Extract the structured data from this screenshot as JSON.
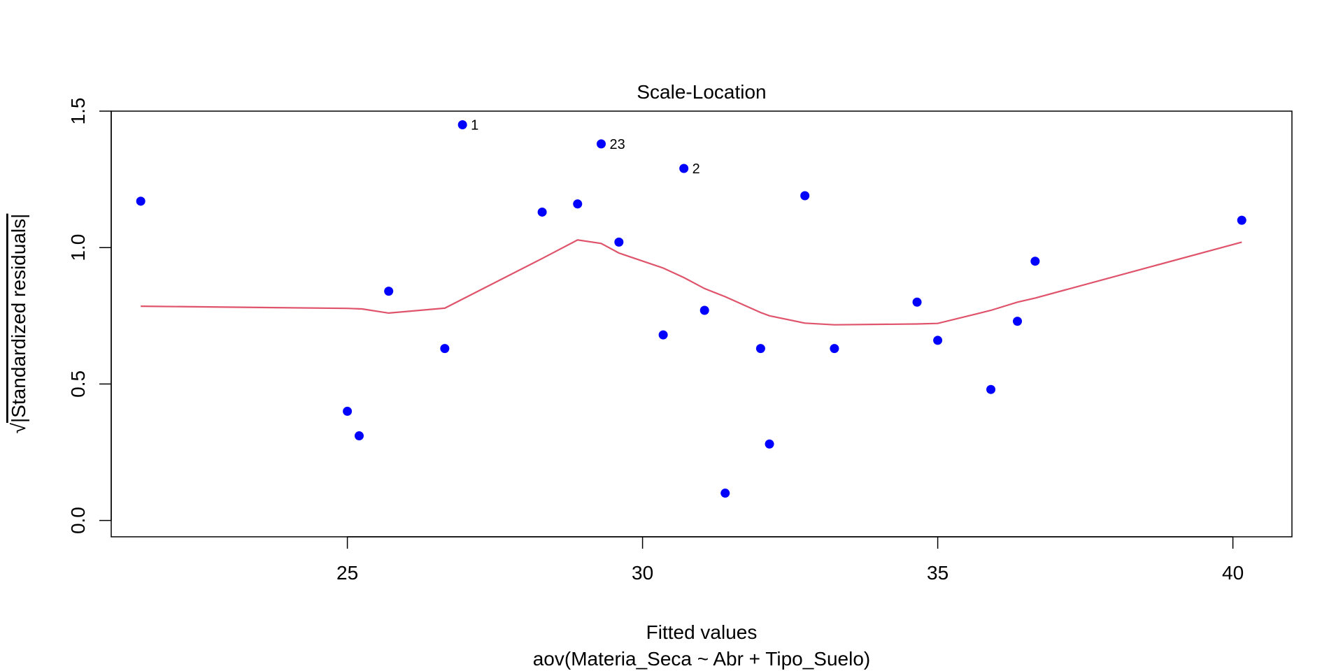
{
  "chart_data": {
    "type": "scatter",
    "title": "Scale-Location",
    "xlabel": "Fitted values",
    "xlabel_sub": "aov(Materia_Seca ~ Abr + Tipo_Suelo)",
    "ylabel_radical": "√",
    "ylabel": "|Standardized residuals|",
    "xlim": [
      21.0,
      41.0
    ],
    "ylim": [
      -0.06,
      1.5
    ],
    "x_ticks": [
      25,
      30,
      35,
      40
    ],
    "x_tick_labels": [
      "25",
      "30",
      "35",
      "40"
    ],
    "y_ticks": [
      0.0,
      0.5,
      1.0,
      1.5
    ],
    "y_tick_labels": [
      "0.0",
      "0.5",
      "1.0",
      "1.5"
    ],
    "grid": false,
    "colors": {
      "points": "#0000FF",
      "smooth": "#DF536B",
      "axis": "#000000"
    },
    "points": [
      {
        "x": 21.5,
        "y": 1.17,
        "label": ""
      },
      {
        "x": 25.0,
        "y": 0.4,
        "label": ""
      },
      {
        "x": 25.2,
        "y": 0.31,
        "label": ""
      },
      {
        "x": 25.7,
        "y": 0.84,
        "label": ""
      },
      {
        "x": 26.65,
        "y": 0.63,
        "label": ""
      },
      {
        "x": 26.95,
        "y": 1.45,
        "label": "1"
      },
      {
        "x": 28.3,
        "y": 1.13,
        "label": ""
      },
      {
        "x": 28.9,
        "y": 1.16,
        "label": ""
      },
      {
        "x": 29.3,
        "y": 1.38,
        "label": "23"
      },
      {
        "x": 29.6,
        "y": 1.02,
        "label": ""
      },
      {
        "x": 30.35,
        "y": 0.68,
        "label": ""
      },
      {
        "x": 30.7,
        "y": 1.29,
        "label": "2"
      },
      {
        "x": 31.05,
        "y": 0.77,
        "label": ""
      },
      {
        "x": 31.4,
        "y": 0.1,
        "label": ""
      },
      {
        "x": 32.0,
        "y": 0.63,
        "label": ""
      },
      {
        "x": 32.15,
        "y": 0.28,
        "label": ""
      },
      {
        "x": 32.75,
        "y": 1.19,
        "label": ""
      },
      {
        "x": 33.25,
        "y": 0.63,
        "label": ""
      },
      {
        "x": 34.65,
        "y": 0.8,
        "label": ""
      },
      {
        "x": 35.0,
        "y": 0.66,
        "label": ""
      },
      {
        "x": 35.9,
        "y": 0.48,
        "label": ""
      },
      {
        "x": 36.35,
        "y": 0.73,
        "label": ""
      },
      {
        "x": 36.65,
        "y": 0.95,
        "label": ""
      },
      {
        "x": 40.15,
        "y": 1.1,
        "label": ""
      }
    ],
    "smooth_line": {
      "x": [
        21.5,
        25.0,
        25.25,
        25.7,
        26.65,
        28.3,
        28.9,
        29.3,
        29.6,
        30.35,
        30.7,
        31.05,
        31.4,
        32.0,
        32.15,
        32.75,
        33.25,
        34.65,
        35.0,
        35.9,
        36.35,
        36.65,
        40.15
      ],
      "y": [
        0.785,
        0.777,
        0.775,
        0.76,
        0.778,
        0.96,
        1.028,
        1.015,
        0.98,
        0.925,
        0.89,
        0.85,
        0.82,
        0.762,
        0.75,
        0.723,
        0.717,
        0.72,
        0.722,
        0.77,
        0.8,
        0.815,
        1.02
      ]
    }
  }
}
